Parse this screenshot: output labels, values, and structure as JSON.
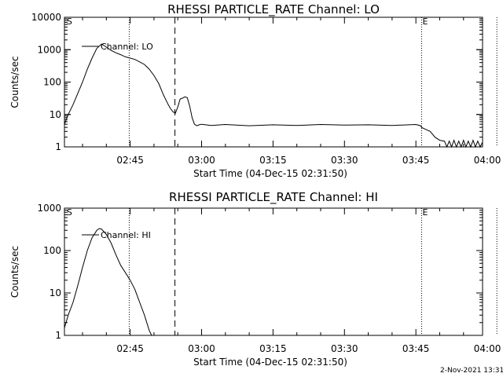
{
  "figure": {
    "footer_timestamp": "2-Nov-2021 13:31"
  },
  "chart_data": [
    {
      "type": "line",
      "title": "RHESSI PARTICLE_RATE Channel: LO",
      "ylabel": "Counts/sec",
      "xlabel": "Start Time (04-Dec-15 02:31:50)",
      "yscale": "log",
      "ylim": [
        1,
        10000
      ],
      "ytick_labels": [
        "1",
        "10",
        "100",
        "1000",
        "10000"
      ],
      "ytick_values": [
        1,
        10,
        100,
        1000,
        10000
      ],
      "xlim_min": [
        -13.8,
        74.0
      ],
      "xtick_labels": [
        "02:45",
        "03:00",
        "03:15",
        "03:30",
        "03:45",
        "04:00"
      ],
      "xtick_min": [
        0,
        15,
        30,
        45,
        60,
        75
      ],
      "legend": "Channel: LO",
      "legend_position": "top-left",
      "flag_labels": [
        "S",
        "E"
      ],
      "flag_positions_min": [
        -13.5,
        61.2
      ],
      "dotted_lines_min": [
        -0.2,
        61.2,
        77.0
      ],
      "dashed_line_min": 9.4,
      "series": [
        {
          "name": "Channel: LO",
          "x": [
            -13.8,
            -13.0,
            -12.0,
            -11.0,
            -10.0,
            -9.0,
            -8.0,
            -7.0,
            -6.0,
            -5.0,
            -4.0,
            -3.0,
            -2.0,
            -1.0,
            0.0,
            1.0,
            2.0,
            3.0,
            4.0,
            5.0,
            6.0,
            7.0,
            8.0,
            8.5,
            9.0,
            9.5,
            10.0,
            10.5,
            11.0,
            11.5,
            12.0,
            12.5,
            13.0,
            13.5,
            14.0,
            14.5,
            15.0,
            17.0,
            20.0,
            25.0,
            30.0,
            35.0,
            40.0,
            45.0,
            50.0,
            55.0,
            60.0,
            61.0,
            61.2,
            62.0,
            63.0,
            64.0,
            65.0,
            66.0,
            66.5,
            67.0,
            67.5,
            68.0,
            68.5,
            69.0,
            69.5,
            70.0,
            70.5,
            71.0,
            71.5,
            72.0,
            72.5,
            73.0,
            73.5,
            74.0
          ],
          "y": [
            5,
            10,
            20,
            45,
            100,
            250,
            550,
            1100,
            1500,
            1200,
            950,
            800,
            700,
            600,
            550,
            500,
            420,
            350,
            250,
            160,
            90,
            40,
            20,
            15,
            12,
            11,
            17,
            30,
            32,
            35,
            33,
            18,
            8,
            5,
            4.5,
            4.8,
            5,
            4.6,
            4.9,
            4.5,
            4.8,
            4.6,
            4.9,
            4.7,
            4.8,
            4.6,
            4.9,
            4.5,
            4.0,
            3.5,
            3.0,
            2.0,
            1.6,
            1.5,
            1.0,
            1.5,
            1.0,
            1.6,
            1.0,
            1.5,
            1.0,
            1.6,
            1.0,
            1.5,
            1.0,
            1.6,
            1.0,
            1.5,
            1.0,
            1.4
          ]
        }
      ]
    },
    {
      "type": "line",
      "title": "RHESSI PARTICLE_RATE Channel: HI",
      "ylabel": "Counts/sec",
      "xlabel": "Start Time (04-Dec-15 02:31:50)",
      "yscale": "log",
      "ylim": [
        1,
        1000
      ],
      "ytick_labels": [
        "1",
        "10",
        "100",
        "1000"
      ],
      "ytick_values": [
        1,
        10,
        100,
        1000
      ],
      "xlim_min": [
        -13.8,
        74.0
      ],
      "xtick_labels": [
        "02:45",
        "03:00",
        "03:15",
        "03:30",
        "03:45",
        "04:00"
      ],
      "xtick_min": [
        0,
        15,
        30,
        45,
        60,
        75
      ],
      "legend": "Channel: HI",
      "legend_position": "top-left",
      "flag_labels": [
        "S",
        "E"
      ],
      "flag_positions_min": [
        -13.5,
        61.2
      ],
      "dotted_lines_min": [
        -0.2,
        61.2,
        77.0
      ],
      "dashed_line_min": 9.4,
      "series": [
        {
          "name": "Channel: HI",
          "x": [
            -13.8,
            -13.0,
            -12.0,
            -11.0,
            -10.0,
            -9.0,
            -8.0,
            -7.0,
            -6.5,
            -6.0,
            -5.0,
            -4.0,
            -3.0,
            -2.0,
            -1.0,
            0.0,
            1.0,
            2.0,
            3.0,
            4.0,
            4.5
          ],
          "y": [
            1.5,
            3,
            6,
            15,
            40,
            100,
            200,
            300,
            330,
            320,
            240,
            150,
            80,
            45,
            30,
            20,
            12,
            6,
            3,
            1.3,
            1.0
          ]
        }
      ]
    }
  ]
}
